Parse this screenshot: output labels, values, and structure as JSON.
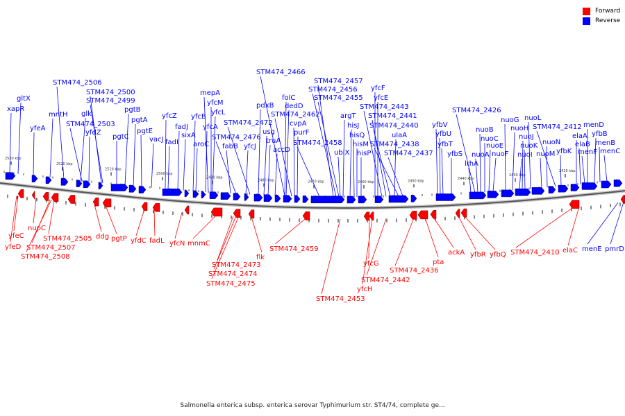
{
  "legend": {
    "forward_label": "Forward",
    "reverse_label": "Reverse",
    "forward_color": "#ff0000",
    "reverse_color": "#0000ff"
  },
  "caption": "Salmonella enterica subsp. enterica serovar Typhimurium str. ST4/74, complete ge...",
  "ticks": [
    "2530 kbp",
    "2520 kbp",
    "2510 kbp",
    "2500 kbp",
    "2490 kbp",
    "2480 kbp",
    "2470 kbp",
    "2460 kbp",
    "2450 kbp",
    "2440 kbp",
    "2430 kbp",
    "2420 kbp"
  ],
  "reverse_genes": [
    "xapR",
    "gltX",
    "yfeA",
    "mntH",
    "STM474_2506",
    "glk",
    "STM474_2503",
    "yfdZ",
    "STM474_2500",
    "STM474_2499",
    "pgtC",
    "pgtB",
    "pgtA",
    "pgtE",
    "vacJ",
    "yfcZ",
    "fadI",
    "fadJ",
    "sixA",
    "yfcB",
    "aroC",
    "yfcA",
    "mepA",
    "yfcM",
    "yfcL",
    "fabB",
    "STM474_2476",
    "yfcJ",
    "STM474_2472",
    "pdxB",
    "usg",
    "truA",
    "accD",
    "dedD",
    "folC",
    "STM474_2462",
    "cvpA",
    "purF",
    "STM474_2466",
    "STM474_2458",
    "STM474_2457",
    "STM474_2456",
    "STM474_2455",
    "ubiX",
    "argT",
    "hisJ",
    "hisQ",
    "hisM",
    "hisP",
    "yfcF",
    "yfcE",
    "STM474_2443",
    "STM474_2441",
    "STM474_2440",
    "ulaA",
    "STM474_2438",
    "STM474_2437",
    "yfbV",
    "yfbU",
    "yfbT",
    "yfbS",
    "STM474_2426",
    "lrhA",
    "nuoA",
    "nuoB",
    "nuoC",
    "nuoE",
    "nuoF",
    "nuoG",
    "nuoH",
    "nuoI",
    "nuoJ",
    "nuoK",
    "nuoL",
    "nuoM",
    "nuoN",
    "STM474_2412",
    "yfbK",
    "elaA",
    "elaB",
    "menF",
    "menD",
    "yfbB",
    "menB",
    "menC"
  ],
  "forward_genes": [
    "yfeC",
    "yfeD",
    "nupC",
    "STM474_2507",
    "STM474_2508",
    "STM474_2505",
    "ddg",
    "pgtP",
    "yfdC",
    "fadL",
    "yfcN",
    "mnmC",
    "STM474_2473",
    "STM474_2474",
    "STM474_2475",
    "flk",
    "STM474_2459",
    "STM474_2453",
    "yfcG",
    "yfcH",
    "STM474_2442",
    "STM474_2436",
    "pta",
    "ackA",
    "yfbR",
    "yfbQ",
    "STM474_2410",
    "elaC",
    "menE",
    "pmrD"
  ]
}
